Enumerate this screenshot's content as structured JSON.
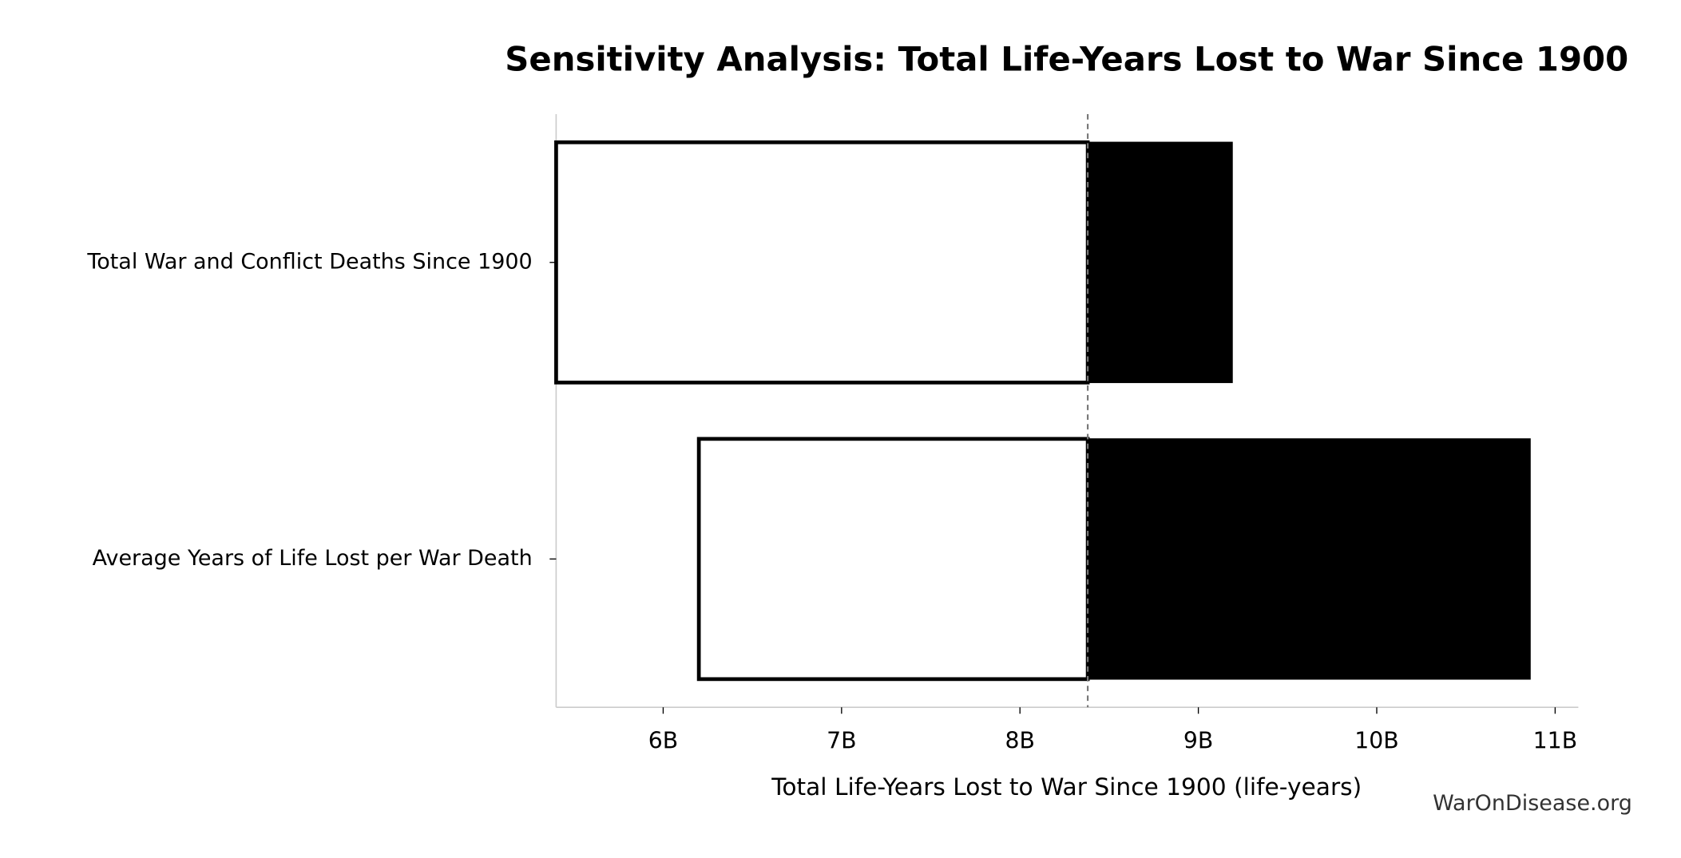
{
  "chart_data": {
    "type": "tornado",
    "title": "Sensitivity Analysis: Total Life-Years Lost to War Since 1900",
    "x_label": "Total Life-Years Lost to War Since 1900 (life-years)",
    "source": "WarOnDisease.org",
    "categories": [
      "Total War and Conflict Deaths Since 1900",
      "Average Years of Life Lost per War Death"
    ],
    "baseline": 8380000000,
    "low": [
      5400000000,
      6200000000
    ],
    "high": [
      9190000000,
      10860000000
    ],
    "low_color": "#ffffff",
    "high_color": "#000000",
    "xlim": [
      5400000000,
      11130000000
    ],
    "xticks": [
      {
        "value": 6000000000,
        "label": "6B"
      },
      {
        "value": 7000000000,
        "label": "7B"
      },
      {
        "value": 8000000000,
        "label": "8B"
      },
      {
        "value": 9000000000,
        "label": "9B"
      },
      {
        "value": 10000000000,
        "label": "10B"
      },
      {
        "value": 11000000000,
        "label": "11B"
      }
    ]
  }
}
